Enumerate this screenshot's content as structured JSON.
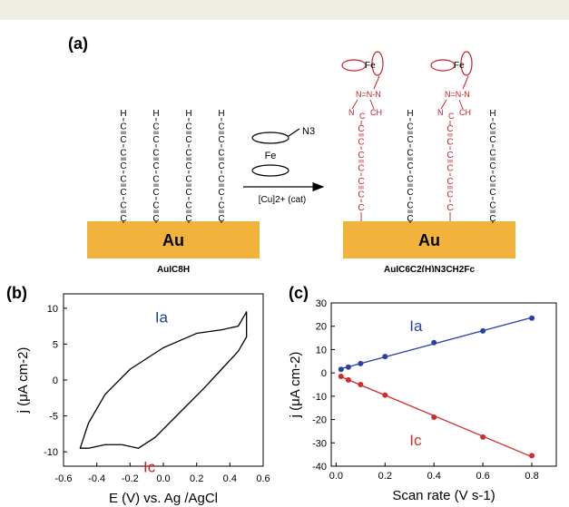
{
  "panels": {
    "a": {
      "label": "(a)",
      "left": {
        "substrate": "Au",
        "caption": "AuIC8H",
        "chain_atoms": [
          "H",
          "C",
          "C",
          "C",
          "C",
          "C",
          "C",
          "C",
          "C"
        ]
      },
      "arrow": {
        "reagent_label": "N3",
        "iron_label": "Fe",
        "catalyst": "[Cu]2+ (cat)"
      },
      "right": {
        "substrate": "Au",
        "caption": "AuIC6C2(H)N3CH2Fc",
        "triazole_atoms": [
          "N",
          "N",
          "N",
          "C",
          "CH"
        ],
        "iron_label": "Fe",
        "alkyne_chain_atoms": [
          "H",
          "C",
          "C",
          "C",
          "C",
          "C",
          "C",
          "C",
          "C"
        ],
        "modified_chain_atoms": [
          "C",
          "C",
          "C",
          "C",
          "C",
          "C",
          "C"
        ]
      }
    },
    "b": {
      "label": "(b)"
    },
    "c": {
      "label": "(c)"
    }
  },
  "chart_data": [
    {
      "panel": "(b)",
      "type": "line",
      "xlabel": "E (V) vs. Ag /AgCl",
      "ylabel": "j (μA cm-2)",
      "xlim": [
        -0.6,
        0.6
      ],
      "ylim": [
        -12,
        12
      ],
      "xticks": [
        "-0.6",
        "-0.4",
        "-0.2",
        "0.0",
        "0.2",
        "0.4",
        "0.6"
      ],
      "yticks": [
        "-10",
        "-5",
        "0",
        "5",
        "10"
      ],
      "annotations": [
        {
          "text": "Ia",
          "color": "#1f3fa0"
        },
        {
          "text": "Ic",
          "color": "#cc1f1f"
        }
      ],
      "series": [
        {
          "color": "#000000",
          "x": [
            -0.5,
            -0.45,
            -0.35,
            -0.2,
            0.0,
            0.2,
            0.35,
            0.45,
            0.5,
            0.5,
            0.45,
            0.35,
            0.25,
            0.1,
            -0.05,
            -0.15,
            -0.25,
            -0.35,
            -0.45,
            -0.5
          ],
          "y": [
            -9.5,
            -6,
            -2,
            1.5,
            4.5,
            6.5,
            7,
            7.5,
            9.5,
            6,
            4,
            1.5,
            -1,
            -4.5,
            -8,
            -9.5,
            -9,
            -9,
            -9.5,
            -9.5
          ]
        }
      ]
    },
    {
      "panel": "(c)",
      "type": "scatter",
      "xlabel": "Scan rate (V s-1)",
      "ylabel": "j (μA cm-2)",
      "xlim": [
        -0.02,
        0.9
      ],
      "ylim": [
        -40,
        30
      ],
      "xticks": [
        "0.0",
        "0.2",
        "0.4",
        "0.6",
        "0.8"
      ],
      "yticks": [
        "-40",
        "-30",
        "-20",
        "-10",
        "0",
        "10",
        "20",
        "30"
      ],
      "grid": false,
      "series": [
        {
          "name": "Ia",
          "color": "#2b3fa8",
          "x": [
            0.02,
            0.05,
            0.1,
            0.2,
            0.4,
            0.6,
            0.8
          ],
          "y": [
            1.5,
            2.5,
            4,
            7,
            13,
            18,
            23.5
          ]
        },
        {
          "name": "Ic",
          "color": "#d42a2a",
          "x": [
            0.02,
            0.05,
            0.1,
            0.2,
            0.4,
            0.6,
            0.8
          ],
          "y": [
            -1.5,
            -3,
            -5,
            -9.5,
            -19,
            -27.5,
            -35.5
          ]
        }
      ]
    }
  ]
}
